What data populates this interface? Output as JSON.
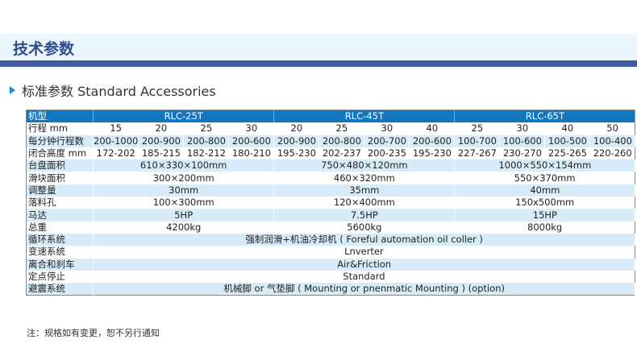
{
  "header": {
    "title": "技术参数"
  },
  "section": {
    "title": "标准参数 Standard Accessories"
  },
  "table": {
    "model_label": "机型",
    "models": [
      "RLC-25T",
      "RLC-45T",
      "RLC-65T"
    ],
    "stroke": {
      "label": "行程 mm",
      "values": [
        "15",
        "20",
        "25",
        "30",
        "20",
        "25",
        "30",
        "40",
        "25",
        "30",
        "40",
        "50"
      ]
    },
    "spm": {
      "label": "每分钟行程数",
      "values": [
        "200-1000",
        "200-900",
        "200-800",
        "200-600",
        "200-900",
        "200-800",
        "200-700",
        "200-600",
        "100-700",
        "100-600",
        "100-500",
        "100-400"
      ]
    },
    "die_height": {
      "label": "闭合高度 mm",
      "values": [
        "172-202",
        "185-215",
        "182-212",
        "180-210",
        "195-230",
        "202-237",
        "200-235",
        "195-230",
        "227-267",
        "230-270",
        "225-265",
        "220-260"
      ]
    },
    "group_rows": [
      {
        "label": "台盘面积",
        "values": [
          "610×330×100mm",
          "750×480×120mm",
          "1000×550×154mm"
        ]
      },
      {
        "label": "滑块面积",
        "values": [
          "300×200mm",
          "460×320mm",
          "550×370mm"
        ]
      },
      {
        "label": "调整量",
        "values": [
          "30mm",
          "35mm",
          "40mm"
        ]
      },
      {
        "label": "落料孔",
        "values": [
          "100×300mm",
          "120×400mm",
          "150x500mm"
        ]
      },
      {
        "label": "马达",
        "values": [
          "5HP",
          "7.5HP",
          "15HP"
        ]
      },
      {
        "label": "总重",
        "values": [
          "4200kg",
          "5600kg",
          "8000kg"
        ]
      }
    ],
    "full_rows": [
      {
        "label": "循环系统",
        "value": "强制润滑+机油冷却机 ( Foreful automation oil coller )"
      },
      {
        "label": "变速系统",
        "value": "Lnverter"
      },
      {
        "label": "离合和刹车",
        "value": "Air&Friction"
      },
      {
        "label": "定点停止",
        "value": "Standard"
      },
      {
        "label": "避震系统",
        "value": "机械脚 or 气垫脚 ( Mounting or pnenmatic Mounting ) (option)"
      }
    ]
  },
  "note": "注：规格如有变更，恕不另行通知"
}
